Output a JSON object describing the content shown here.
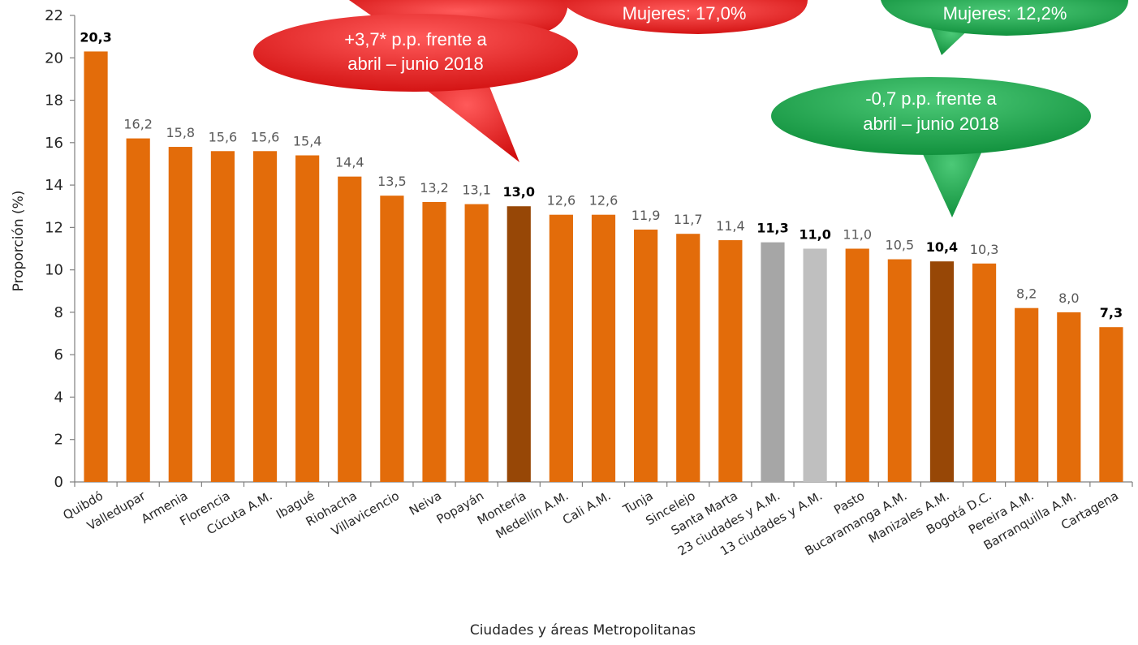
{
  "chart_data": {
    "type": "bar",
    "xlabel": "Ciudades y áreas Metropolitanas",
    "ylabel": "Proporción (%)",
    "ylim": [
      0,
      22
    ],
    "yticks": [
      0,
      2,
      4,
      6,
      8,
      10,
      12,
      14,
      16,
      18,
      20,
      22
    ],
    "categories": [
      "Quibdó",
      "Valledupar",
      "Armenia",
      "Florencia",
      "Cúcuta A.M.",
      "Ibagué",
      "Riohacha",
      "Villavicencio",
      "Neiva",
      "Popayán",
      "Montería",
      "Medellín A.M.",
      "Cali A.M.",
      "Tunja",
      "Sincelejo",
      "Santa Marta",
      "23 ciudades y A.M.",
      "13 ciudades y A.M.",
      "Pasto",
      "Bucaramanga A.M.",
      "Manizales A.M.",
      "Bogotá D.C.",
      "Pereira A.M.",
      "Barranquilla A.M.",
      "Cartagena"
    ],
    "values": [
      20.3,
      16.2,
      15.8,
      15.6,
      15.6,
      15.4,
      14.4,
      13.5,
      13.2,
      13.1,
      13.0,
      12.6,
      12.6,
      11.9,
      11.7,
      11.4,
      11.3,
      11.0,
      11.0,
      10.5,
      10.4,
      10.3,
      8.2,
      8.0,
      7.3
    ],
    "value_labels": [
      "20,3",
      "16,2",
      "15,8",
      "15,6",
      "15,6",
      "15,4",
      "14,4",
      "13,5",
      "13,2",
      "13,1",
      "13,0",
      "12,6",
      "12,6",
      "11,9",
      "11,7",
      "11,4",
      "11,3",
      "11,0",
      "11,0",
      "10,5",
      "10,4",
      "10,3",
      "8,2",
      "8,0",
      "7,3"
    ],
    "bold_labels": [
      0,
      10,
      16,
      17,
      20,
      24
    ],
    "bar_colors": {
      "default": "#E36C0A",
      "highlight": "#974706",
      "aggregate_23": "#A6A6A6",
      "aggregate_13": "#BFBFBF"
    },
    "highlight_indices": [
      10,
      20
    ],
    "aggregate_23_index": 16,
    "aggregate_13_index": 17,
    "grid": false,
    "annotations": [
      {
        "id": "red-top",
        "color": "#E31B1B",
        "lines": [
          "Mujeres: 17,0%"
        ]
      },
      {
        "id": "red-main",
        "color": "#E31B1B",
        "lines": [
          "+3,7* p.p. frente a",
          "abril – junio 2018"
        ]
      },
      {
        "id": "green-top",
        "color": "#1AA24A",
        "lines": [
          "Mujeres: 12,2%"
        ]
      },
      {
        "id": "green-main",
        "color": "#1AA24A",
        "lines": [
          "-0,7 p.p. frente a",
          "abril – junio 2018"
        ]
      }
    ]
  }
}
